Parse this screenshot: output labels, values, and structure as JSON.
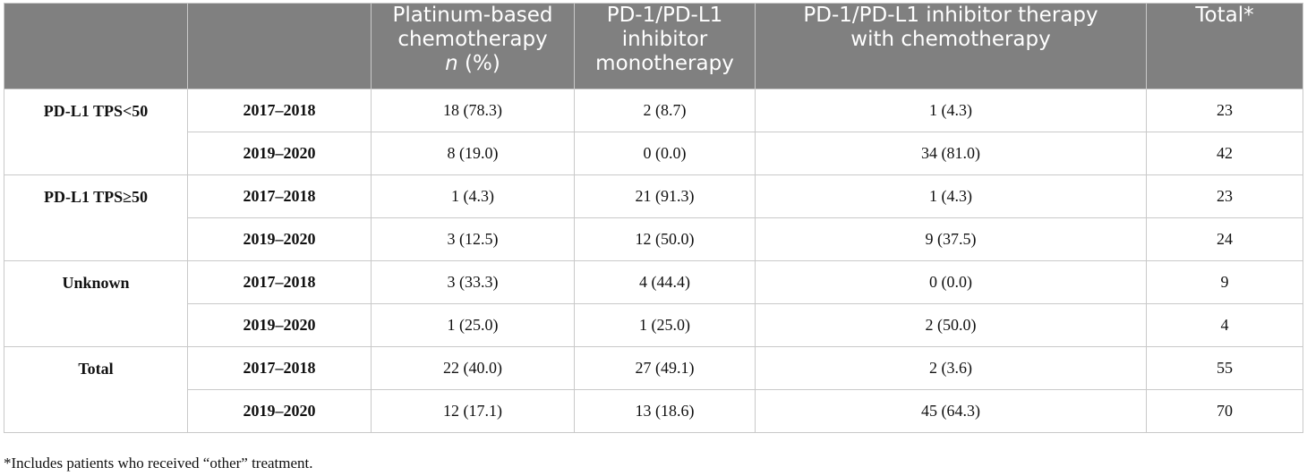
{
  "table": {
    "headers": {
      "col1": "",
      "col2": "",
      "platinum": [
        "Platinum-based",
        "chemotherapy"
      ],
      "platinum_n": "n",
      "platinum_pct": "(%)",
      "pd1_mono": [
        "PD-1/PD-L1",
        "inhibitor",
        "monotherapy"
      ],
      "pd1_chemo": [
        "PD-1/PD-L1 inhibitor therapy",
        "with chemotherapy"
      ],
      "total": "Total*"
    },
    "groups": [
      {
        "label": "PD-L1 TPS<50",
        "rows": [
          {
            "period": "2017–2018",
            "platinum": "18 (78.3)",
            "mono": "2 (8.7)",
            "combo": "1 (4.3)",
            "total": "23"
          },
          {
            "period": "2019–2020",
            "platinum": "8 (19.0)",
            "mono": "0 (0.0)",
            "combo": "34 (81.0)",
            "total": "42"
          }
        ]
      },
      {
        "label": "PD-L1 TPS≥50",
        "rows": [
          {
            "period": "2017–2018",
            "platinum": "1 (4.3)",
            "mono": "21 (91.3)",
            "combo": "1 (4.3)",
            "total": "23"
          },
          {
            "period": "2019–2020",
            "platinum": "3 (12.5)",
            "mono": "12 (50.0)",
            "combo": "9 (37.5)",
            "total": "24"
          }
        ]
      },
      {
        "label": "Unknown",
        "rows": [
          {
            "period": "2017–2018",
            "platinum": "3 (33.3)",
            "mono": "4 (44.4)",
            "combo": "0 (0.0)",
            "total": "9"
          },
          {
            "period": "2019–2020",
            "platinum": "1 (25.0)",
            "mono": "1 (25.0)",
            "combo": "2 (50.0)",
            "total": "4"
          }
        ]
      },
      {
        "label": "Total",
        "rows": [
          {
            "period": "2017–2018",
            "platinum": "22 (40.0)",
            "mono": "27 (49.1)",
            "combo": "2 (3.6)",
            "total": "55"
          },
          {
            "period": "2019–2020",
            "platinum": "12 (17.1)",
            "mono": "13 (18.6)",
            "combo": "45 (64.3)",
            "total": "70"
          }
        ]
      }
    ]
  },
  "footnote": "*Includes patients who received “other” treatment."
}
